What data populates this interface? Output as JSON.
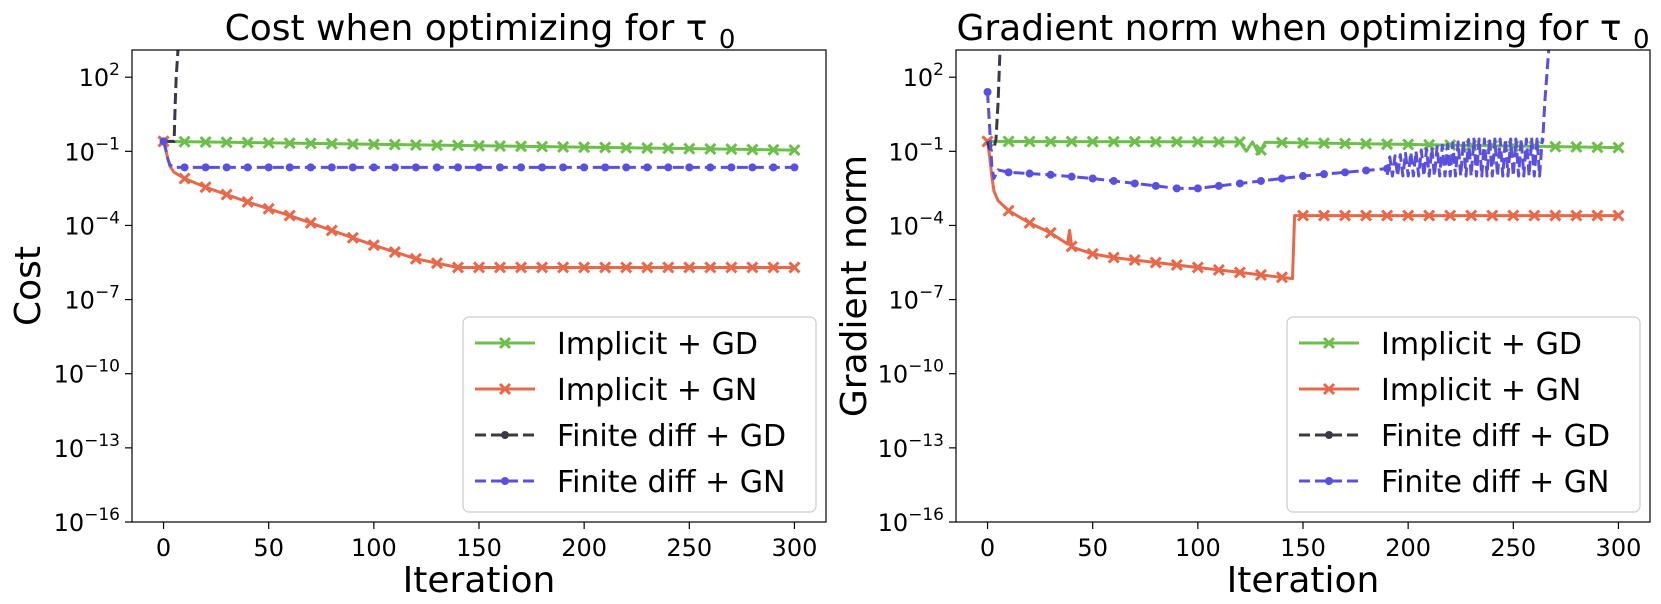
{
  "chart_data": [
    {
      "type": "line",
      "title": "Cost when optimizing for τ",
      "title_subscript": "0",
      "xlabel": "Iteration",
      "ylabel": "Cost",
      "yscale": "log",
      "xlim": [
        -15,
        315
      ],
      "ylim_exp": [
        -16,
        3.1
      ],
      "xticks": [
        0,
        50,
        100,
        150,
        200,
        250,
        300
      ],
      "yticks_exp": [
        2,
        -1,
        -4,
        -7,
        -10,
        -13,
        -16
      ],
      "legend_loc": "lower-right",
      "series": [
        {
          "name": "Implicit + GD",
          "color": "#6cbf4b",
          "style": "solid",
          "marker": "x",
          "x": [
            0,
            300
          ],
          "log10y": [
            -0.6,
            -0.95
          ],
          "markers_every": 10
        },
        {
          "name": "Implicit + GN",
          "color": "#e8694a",
          "style": "solid",
          "marker": "x",
          "x": [
            0,
            1,
            2,
            3,
            5,
            10,
            20,
            40,
            60,
            80,
            100,
            120,
            140,
            150,
            200,
            250,
            300
          ],
          "log10y": [
            -0.6,
            -0.9,
            -1.3,
            -1.6,
            -1.85,
            -2.1,
            -2.45,
            -3.05,
            -3.6,
            -4.2,
            -4.8,
            -5.35,
            -5.7,
            -5.7,
            -5.7,
            -5.7,
            -5.7
          ],
          "markers_every": 10
        },
        {
          "name": "Finite diff + GD",
          "color": "#3a3a44",
          "style": "dashed",
          "marker": "o",
          "x": [
            0,
            2,
            5,
            5.5,
            6,
            7
          ],
          "log10y": [
            -0.6,
            -0.6,
            -0.6,
            0.8,
            2.0,
            3.3
          ],
          "markers_every": 0
        },
        {
          "name": "Finite diff + GN",
          "color": "#5b4fe0",
          "style": "dashed",
          "marker": "o",
          "x": [
            0,
            1,
            2,
            3,
            5,
            300
          ],
          "log10y": [
            -0.6,
            -0.9,
            -1.3,
            -1.55,
            -1.65,
            -1.65
          ],
          "markers_every": 10
        }
      ]
    },
    {
      "type": "line",
      "title": "Gradient norm when optimizing for τ",
      "title_subscript": "0",
      "xlabel": "Iteration",
      "ylabel": "Gradient norm",
      "yscale": "log",
      "xlim": [
        -15,
        315
      ],
      "ylim_exp": [
        -16,
        3.1
      ],
      "xticks": [
        0,
        50,
        100,
        150,
        200,
        250,
        300
      ],
      "yticks_exp": [
        2,
        -1,
        -4,
        -7,
        -10,
        -13,
        -16
      ],
      "legend_loc": "lower-right",
      "series": [
        {
          "name": "Implicit + GD",
          "color": "#6cbf4b",
          "style": "solid",
          "marker": "x",
          "x": [
            0,
            120,
            123,
            126,
            129,
            132,
            135,
            300
          ],
          "log10y": [
            -0.6,
            -0.62,
            -1.0,
            -0.62,
            -1.1,
            -0.63,
            -0.64,
            -0.85
          ],
          "markers_every": 10
        },
        {
          "name": "Implicit + GN",
          "color": "#e8694a",
          "style": "solid",
          "marker": "x",
          "x": [
            0,
            1,
            2,
            3,
            5,
            10,
            20,
            30,
            38,
            39,
            40,
            41,
            50,
            60,
            80,
            100,
            120,
            140,
            145,
            146,
            150,
            200,
            250,
            300
          ],
          "log10y": [
            -0.6,
            -1.2,
            -2.0,
            -2.6,
            -3.0,
            -3.4,
            -3.9,
            -4.3,
            -4.75,
            -4.2,
            -4.85,
            -4.9,
            -5.15,
            -5.3,
            -5.5,
            -5.7,
            -5.9,
            -6.1,
            -6.15,
            -3.6,
            -3.6,
            -3.6,
            -3.6,
            -3.6
          ],
          "markers_every": 10
        },
        {
          "name": "Finite diff + GD",
          "color": "#3a3a44",
          "style": "dashed",
          "marker": "o",
          "x": [
            0,
            1,
            2,
            3,
            4,
            5,
            6
          ],
          "log10y": [
            -0.6,
            -0.9,
            -0.95,
            -0.9,
            -0.5,
            1.0,
            3.3
          ],
          "markers_every": 0
        },
        {
          "name": "Finite diff + GN",
          "color": "#5b4fe0",
          "style": "dashed",
          "marker": "o",
          "x": [
            0,
            1,
            2,
            3,
            5,
            10,
            30,
            50,
            70,
            90,
            100,
            110,
            130,
            150,
            170,
            190
          ],
          "log10y": [
            1.4,
            0.0,
            -1.6,
            -2.1,
            -1.75,
            -1.85,
            -1.95,
            -2.1,
            -2.3,
            -2.5,
            -2.5,
            -2.4,
            -2.2,
            -2.0,
            -1.85,
            -1.7
          ],
          "oscillation": {
            "x_start": 190,
            "x_end": 264,
            "low": -2.0,
            "high": -0.5,
            "period": 2.5
          },
          "tail": {
            "x": [
              264,
              265,
              267
            ],
            "log10y": [
              -0.6,
              1.0,
              3.3
            ]
          },
          "markers_every": 10
        }
      ]
    }
  ]
}
